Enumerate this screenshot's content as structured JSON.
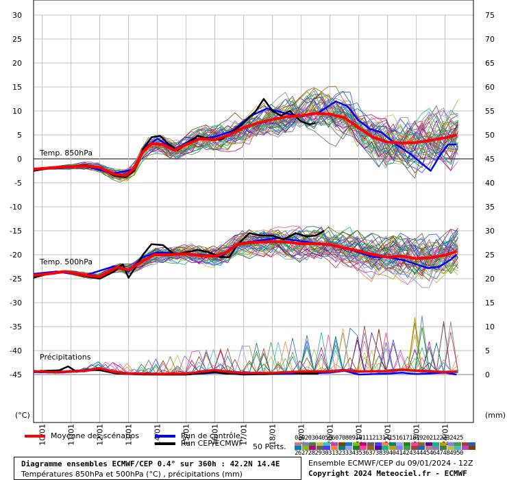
{
  "chart_data": {
    "type": "line",
    "title": "Diagramme ensembles ECMWF/CEP 0.4° sur 360h : 42.2N 14.4E",
    "subtitle": "Températures 850hPa et 500hPa (°C) , précipitations (mm)",
    "y_left_unit": "(°C)",
    "y_right_unit": "(mm)",
    "y_left_ticks": [
      30,
      25,
      20,
      15,
      10,
      5,
      0,
      -5,
      -10,
      -15,
      -20,
      -25,
      -30,
      -35,
      -40,
      -45
    ],
    "y_right_ticks": [
      75,
      70,
      65,
      60,
      55,
      50,
      45,
      40,
      35,
      30,
      25,
      20,
      15,
      10,
      5,
      0
    ],
    "ylim": [
      -55,
      30
    ],
    "x_tick_labels": [
      "10/01",
      "11/01",
      "12/01",
      "13/01",
      "14/01",
      "15/01",
      "16/01",
      "17/01",
      "18/01",
      "19/01",
      "20/01",
      "21/01",
      "22/01",
      "23/01",
      "24/01"
    ],
    "x_day_start": 9.7,
    "panel_labels": [
      "Temp. 850hPa",
      "Temp. 500hPa",
      "Précipitations"
    ],
    "t850_mean": [
      [
        9.7,
        -2.2
      ],
      [
        10.0,
        -2.0
      ],
      [
        10.5,
        -1.8
      ],
      [
        11.0,
        -1.7
      ],
      [
        11.5,
        -1.5
      ],
      [
        12.0,
        -1.8
      ],
      [
        12.5,
        -3.2
      ],
      [
        12.9,
        -3.5
      ],
      [
        13.2,
        -2.0
      ],
      [
        13.5,
        1.5
      ],
      [
        13.8,
        3.2
      ],
      [
        14.2,
        3.0
      ],
      [
        14.6,
        1.8
      ],
      [
        15.0,
        3.0
      ],
      [
        15.5,
        4.2
      ],
      [
        16.0,
        4.0
      ],
      [
        16.5,
        5.0
      ],
      [
        17.0,
        6.5
      ],
      [
        17.5,
        7.5
      ],
      [
        18.0,
        8.2
      ],
      [
        18.5,
        8.8
      ],
      [
        19.0,
        9.0
      ],
      [
        19.5,
        9.5
      ],
      [
        20.0,
        9.3
      ],
      [
        20.5,
        8.6
      ],
      [
        21.0,
        6.5
      ],
      [
        21.5,
        4.5
      ],
      [
        22.0,
        3.5
      ],
      [
        22.5,
        3.3
      ],
      [
        23.0,
        3.4
      ],
      [
        23.5,
        3.9
      ],
      [
        24.0,
        4.4
      ],
      [
        24.4,
        5.0
      ]
    ],
    "t850_cep": [
      [
        9.7,
        -2.5
      ],
      [
        10.0,
        -2.2
      ],
      [
        10.5,
        -1.8
      ],
      [
        11.0,
        -1.6
      ],
      [
        11.5,
        -1.3
      ],
      [
        12.0,
        -1.8
      ],
      [
        12.5,
        -3.5
      ],
      [
        12.9,
        -3.8
      ],
      [
        13.2,
        -2.5
      ],
      [
        13.5,
        2.0
      ],
      [
        13.8,
        4.5
      ],
      [
        14.1,
        4.8
      ],
      [
        14.4,
        3.0
      ],
      [
        14.7,
        1.8
      ],
      [
        15.0,
        3.0
      ],
      [
        15.4,
        4.8
      ],
      [
        15.8,
        4.2
      ],
      [
        16.2,
        4.0
      ],
      [
        16.5,
        5.0
      ],
      [
        17.0,
        7.5
      ],
      [
        17.4,
        9.8
      ],
      [
        17.7,
        12.5
      ],
      [
        18.0,
        10.0
      ],
      [
        18.3,
        9.0
      ],
      [
        18.6,
        10.0
      ],
      [
        19.0,
        7.8
      ],
      [
        19.3,
        7.2
      ],
      [
        19.5,
        7.5
      ]
    ],
    "t850_ctrl": [
      [
        9.7,
        -2.0
      ],
      [
        10.5,
        -2.0
      ],
      [
        11.5,
        -1.6
      ],
      [
        12.5,
        -3.0
      ],
      [
        13.2,
        -2.2
      ],
      [
        13.6,
        2.5
      ],
      [
        14.0,
        4.2
      ],
      [
        14.6,
        2.0
      ],
      [
        15.2,
        4.0
      ],
      [
        16.0,
        4.6
      ],
      [
        16.6,
        5.8
      ],
      [
        17.2,
        8.8
      ],
      [
        17.8,
        10.5
      ],
      [
        18.4,
        9.6
      ],
      [
        19.0,
        8.8
      ],
      [
        19.6,
        9.6
      ],
      [
        20.2,
        12.0
      ],
      [
        20.6,
        11.0
      ],
      [
        21.0,
        8.0
      ],
      [
        21.4,
        6.2
      ],
      [
        21.8,
        5.5
      ],
      [
        22.3,
        3.0
      ],
      [
        22.8,
        1.0
      ],
      [
        23.2,
        -1.0
      ],
      [
        23.5,
        -2.5
      ],
      [
        23.8,
        0.5
      ],
      [
        24.1,
        3.0
      ],
      [
        24.4,
        3.0
      ]
    ],
    "t500_mean": [
      [
        9.7,
        -24.3
      ],
      [
        10.2,
        -24.0
      ],
      [
        10.8,
        -23.5
      ],
      [
        11.5,
        -24.3
      ],
      [
        12.0,
        -24.6
      ],
      [
        12.6,
        -22.6
      ],
      [
        13.0,
        -23.2
      ],
      [
        13.5,
        -21.3
      ],
      [
        13.9,
        -20.0
      ],
      [
        14.5,
        -20.0
      ],
      [
        15.0,
        -19.8
      ],
      [
        15.5,
        -20.2
      ],
      [
        16.0,
        -20.3
      ],
      [
        16.4,
        -19.5
      ],
      [
        16.8,
        -17.8
      ],
      [
        17.2,
        -17.5
      ],
      [
        17.6,
        -17.4
      ],
      [
        18.0,
        -17.2
      ],
      [
        18.5,
        -17.4
      ],
      [
        19.0,
        -17.7
      ],
      [
        19.5,
        -17.7
      ],
      [
        20.0,
        -17.9
      ],
      [
        20.5,
        -18.6
      ],
      [
        21.0,
        -19.2
      ],
      [
        21.5,
        -20.0
      ],
      [
        22.0,
        -20.5
      ],
      [
        22.5,
        -20.3
      ],
      [
        23.0,
        -20.8
      ],
      [
        23.5,
        -20.6
      ],
      [
        24.0,
        -20.1
      ],
      [
        24.4,
        -19.3
      ]
    ],
    "t500_cep": [
      [
        9.7,
        -24.8
      ],
      [
        10.2,
        -24.0
      ],
      [
        10.8,
        -23.5
      ],
      [
        11.5,
        -24.5
      ],
      [
        12.0,
        -25.0
      ],
      [
        12.5,
        -23.5
      ],
      [
        12.8,
        -22.0
      ],
      [
        13.0,
        -24.8
      ],
      [
        13.2,
        -23.0
      ],
      [
        13.5,
        -20.0
      ],
      [
        13.8,
        -17.8
      ],
      [
        14.2,
        -18.0
      ],
      [
        14.6,
        -20.0
      ],
      [
        15.0,
        -19.5
      ],
      [
        15.4,
        -19.0
      ],
      [
        15.8,
        -19.5
      ],
      [
        16.2,
        -20.5
      ],
      [
        16.5,
        -20.5
      ],
      [
        16.8,
        -17.8
      ],
      [
        17.2,
        -15.5
      ],
      [
        17.6,
        -16.0
      ],
      [
        18.0,
        -16.0
      ],
      [
        18.4,
        -16.8
      ],
      [
        18.8,
        -15.5
      ],
      [
        19.2,
        -16.2
      ],
      [
        19.5,
        -16.0
      ],
      [
        19.8,
        -15.0
      ]
    ],
    "t500_ctrl": [
      [
        9.7,
        -24.0
      ],
      [
        10.5,
        -23.5
      ],
      [
        11.5,
        -24.3
      ],
      [
        12.5,
        -22.4
      ],
      [
        13.0,
        -23.5
      ],
      [
        13.5,
        -20.5
      ],
      [
        14.0,
        -19.5
      ],
      [
        14.8,
        -19.8
      ],
      [
        15.6,
        -20.0
      ],
      [
        16.2,
        -20.5
      ],
      [
        16.6,
        -18.5
      ],
      [
        17.0,
        -17.5
      ],
      [
        17.6,
        -17.0
      ],
      [
        18.2,
        -16.5
      ],
      [
        18.8,
        -17.0
      ],
      [
        19.4,
        -17.5
      ],
      [
        20.0,
        -17.8
      ],
      [
        20.5,
        -18.6
      ],
      [
        21.0,
        -19.5
      ],
      [
        21.5,
        -20.5
      ],
      [
        22.0,
        -20.5
      ],
      [
        22.6,
        -21.2
      ],
      [
        23.0,
        -22.0
      ],
      [
        23.4,
        -22.8
      ],
      [
        23.8,
        -22.5
      ],
      [
        24.2,
        -21.0
      ],
      [
        24.4,
        -20.0
      ]
    ],
    "precip_mean": [
      [
        9.7,
        0.7
      ],
      [
        10.5,
        0.5
      ],
      [
        11.5,
        0.8
      ],
      [
        12.0,
        1.3
      ],
      [
        12.5,
        0.5
      ],
      [
        13.0,
        0.2
      ],
      [
        14.0,
        0.1
      ],
      [
        15.0,
        0.2
      ],
      [
        15.6,
        0.6
      ],
      [
        16.0,
        0.9
      ],
      [
        16.5,
        0.5
      ],
      [
        17.0,
        0.3
      ],
      [
        18.0,
        0.3
      ],
      [
        19.0,
        0.6
      ],
      [
        20.0,
        0.6
      ],
      [
        20.5,
        0.9
      ],
      [
        21.0,
        0.6
      ],
      [
        22.0,
        0.7
      ],
      [
        22.5,
        1.0
      ],
      [
        23.0,
        0.8
      ],
      [
        24.0,
        0.5
      ],
      [
        24.4,
        0.6
      ]
    ],
    "precip_cep": [
      [
        9.7,
        0.6
      ],
      [
        10.2,
        0.8
      ],
      [
        10.6,
        0.9
      ],
      [
        10.9,
        1.7
      ],
      [
        11.2,
        0.6
      ],
      [
        11.6,
        1.0
      ],
      [
        12.0,
        0.9
      ],
      [
        12.5,
        0.3
      ],
      [
        13.0,
        0.1
      ],
      [
        14.0,
        0.0
      ],
      [
        15.0,
        0.0
      ],
      [
        15.5,
        0.3
      ],
      [
        16.0,
        0.5
      ],
      [
        16.4,
        0.2
      ],
      [
        17.0,
        0.1
      ],
      [
        18.0,
        0.1
      ],
      [
        18.6,
        0.5
      ],
      [
        19.0,
        0.2
      ],
      [
        19.6,
        0.2
      ]
    ],
    "precip_ctrl": [
      [
        9.7,
        0.5
      ],
      [
        10.5,
        0.5
      ],
      [
        11.2,
        0.8
      ],
      [
        12.0,
        1.0
      ],
      [
        12.6,
        0.2
      ],
      [
        13.5,
        0.0
      ],
      [
        15.0,
        0.0
      ],
      [
        16.0,
        0.4
      ],
      [
        17.0,
        0.0
      ],
      [
        18.0,
        0.1
      ],
      [
        19.0,
        0.2
      ],
      [
        20.0,
        0.4
      ],
      [
        20.5,
        0.8
      ],
      [
        21.0,
        0.0
      ],
      [
        22.0,
        0.2
      ],
      [
        22.5,
        0.4
      ],
      [
        23.0,
        0.1
      ],
      [
        24.0,
        0.4
      ],
      [
        24.4,
        0.0
      ]
    ],
    "ensemble_members": 50,
    "series_names": [
      "Moyenne des scénarios",
      "Run de contrôle",
      "Run CEP/ECMWF"
    ],
    "series_colors": [
      "#ff0000",
      "#0000ff",
      "#000000"
    ],
    "grid": true
  },
  "legend": {
    "mean_label": "Moyenne des scénarios",
    "ctrl_label": "Run de contrôle",
    "cep_label": "Run CEP/ECMWF",
    "perts_label": "50 Perts.",
    "pert_numbers_top": "01020304050607080910111213141516171819202122232425",
    "pert_numbers_bottom": "26272829303132333435363738394041424344454647484950"
  },
  "info": {
    "line1": "Diagramme ensembles ECMWF/CEP 0.4° sur 360h : 42.2N 14.4E",
    "line2": "Températures 850hPa et 500hPa (°C) , précipitations (mm)",
    "run": "Ensemble ECMWF/CEP du 09/01/2024 - 12Z",
    "copyright": "Copyright 2024 Meteociel.fr - ECMWF"
  },
  "colors": {
    "mean": "#ff0000",
    "control": "#0000ff",
    "cep": "#000000",
    "grid": "#c0c0c0",
    "zero_line": "#808080"
  }
}
